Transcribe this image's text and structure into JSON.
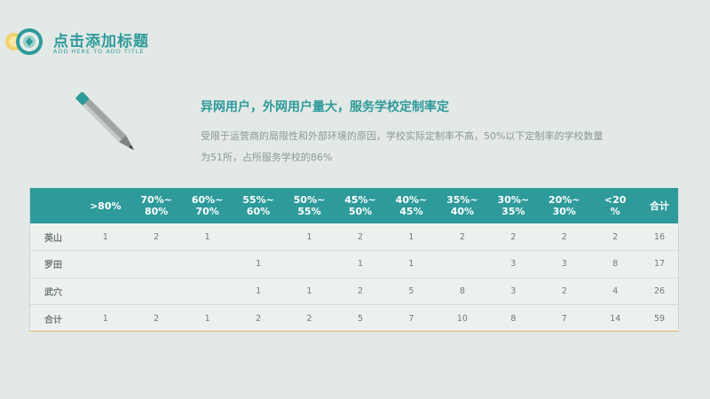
{
  "header": {
    "title": "点击添加标题",
    "subtitle": "ADD HERE TO ADD TITLE"
  },
  "content": {
    "headline": "异网用户，外网用户量大，服务学校定制率定",
    "para_line1": "受限于运营商的局限性和外部环境的原因，学校实际定制率不高，50%以下定制率的学校数量",
    "para_line2": "为51所，占所服务学校的86%"
  },
  "table": {
    "columns": [
      ">80%",
      "70%~80%",
      "60%~70%",
      "55%~60%",
      "50%~55%",
      "45%~50%",
      "40%~45%",
      "35%~40%",
      "30%~35%",
      "20%~30%",
      "<20%",
      "合计"
    ],
    "column_lines": [
      [
        ">80%",
        ""
      ],
      [
        "70%~",
        "80%"
      ],
      [
        "60%~",
        "70%"
      ],
      [
        "55%~",
        "60%"
      ],
      [
        "50%~",
        "55%"
      ],
      [
        "45%~",
        "50%"
      ],
      [
        "40%~",
        "45%"
      ],
      [
        "35%~",
        "40%"
      ],
      [
        "30%~",
        "35%"
      ],
      [
        "20%~",
        "30%"
      ],
      [
        "<20",
        "%"
      ],
      [
        "合计",
        ""
      ]
    ],
    "rows": [
      {
        "label": "英山",
        "cells": [
          "1",
          "2",
          "1",
          "",
          "1",
          "2",
          "1",
          "2",
          "2",
          "2",
          "2",
          "16"
        ]
      },
      {
        "label": "罗田",
        "cells": [
          "",
          "",
          "",
          "1",
          "",
          "1",
          "1",
          "",
          "3",
          "3",
          "8",
          "17"
        ]
      },
      {
        "label": "武穴",
        "cells": [
          "",
          "",
          "",
          "1",
          "1",
          "2",
          "5",
          "8",
          "3",
          "2",
          "4",
          "26"
        ]
      },
      {
        "label": "合计",
        "cells": [
          "1",
          "2",
          "1",
          "2",
          "2",
          "5",
          "7",
          "10",
          "8",
          "7",
          "14",
          "59"
        ]
      }
    ]
  },
  "colors": {
    "accent": "#2e9a9a",
    "background": "#e3e9e6",
    "table_bottom_border": "#e8b36a"
  },
  "icons": {
    "logo": "circular-badge-logo",
    "decoration": "pencil-icon"
  }
}
